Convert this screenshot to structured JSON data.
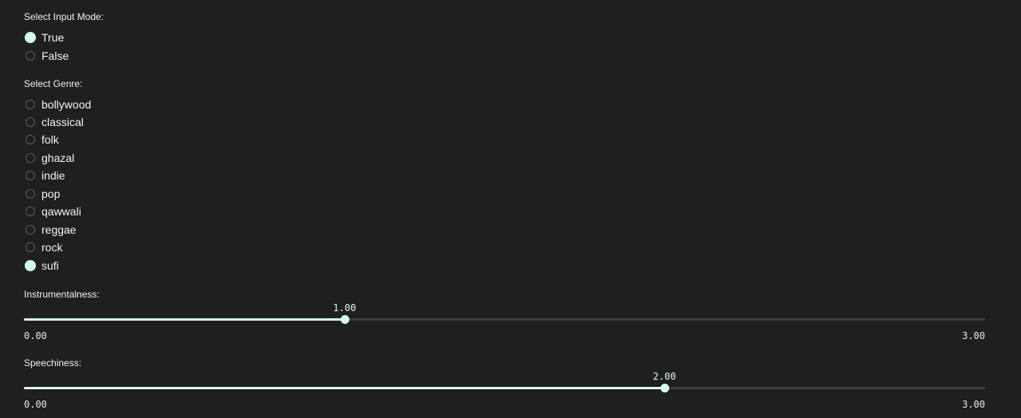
{
  "colors": {
    "background": "#1f1f1f",
    "accent": "#d7fae7",
    "track": "#3d3d3d",
    "radio_border": "#5c5c5c"
  },
  "input_mode": {
    "label": "Select Input Mode:",
    "options": [
      {
        "label": "True",
        "checked": true
      },
      {
        "label": "False",
        "checked": false
      }
    ]
  },
  "genre": {
    "label": "Select Genre:",
    "options": [
      {
        "label": "bollywood",
        "checked": false
      },
      {
        "label": "classical",
        "checked": false
      },
      {
        "label": "folk",
        "checked": false
      },
      {
        "label": "ghazal",
        "checked": false
      },
      {
        "label": "indie",
        "checked": false
      },
      {
        "label": "pop",
        "checked": false
      },
      {
        "label": "qawwali",
        "checked": false
      },
      {
        "label": "reggae",
        "checked": false
      },
      {
        "label": "rock",
        "checked": false
      },
      {
        "label": "sufi",
        "checked": true
      }
    ]
  },
  "sliders": {
    "instrumentalness": {
      "label": "Instrumentalness:",
      "value": 1.0,
      "value_text": "1.00",
      "min": 0,
      "max": 3,
      "min_text": "0.00",
      "max_text": "3.00"
    },
    "speechiness": {
      "label": "Speechiness:",
      "value": 2.0,
      "value_text": "2.00",
      "min": 0,
      "max": 3,
      "min_text": "0.00",
      "max_text": "3.00"
    }
  }
}
